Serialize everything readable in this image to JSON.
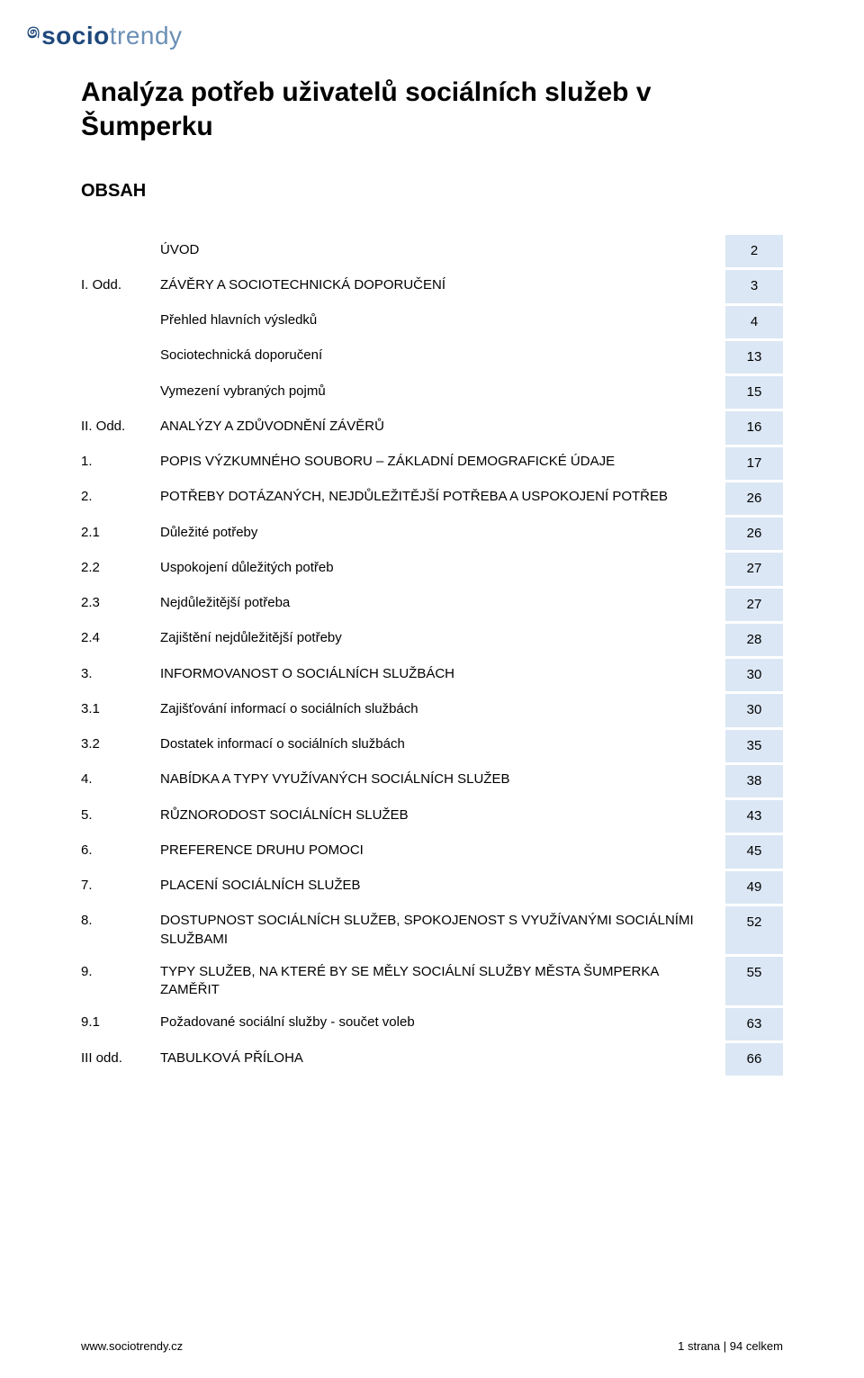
{
  "logo": {
    "mark": "෧",
    "part1": "socio",
    "part2": "trendy"
  },
  "title": "Analýza potřeb uživatelů sociálních služeb v Šumperku",
  "obsah_label": "OBSAH",
  "colors": {
    "page_cell_bg": "#dbe7f4",
    "logo_primary": "#1f487c",
    "logo_secondary": "#6c8fb5",
    "text": "#000000",
    "background": "#ffffff"
  },
  "toc": [
    {
      "num": "",
      "text": "ÚVOD",
      "page": "2"
    },
    {
      "num": "I. Odd.",
      "text": "ZÁVĚRY A SOCIOTECHNICKÁ DOPORUČENÍ",
      "page": "3"
    },
    {
      "num": "",
      "text": "Přehled hlavních výsledků",
      "page": "4"
    },
    {
      "num": "",
      "text": "Sociotechnická doporučení",
      "page": "13"
    },
    {
      "num": "",
      "text": "Vymezení vybraných pojmů",
      "page": "15"
    },
    {
      "num": "II. Odd.",
      "text": "ANALÝZY A ZDŮVODNĚNÍ ZÁVĚRŮ",
      "page": "16"
    },
    {
      "num": "1.",
      "text": "POPIS VÝZKUMNÉHO SOUBORU – ZÁKLADNÍ DEMOGRAFICKÉ ÚDAJE",
      "page": "17"
    },
    {
      "num": "2.",
      "text": "POTŘEBY DOTÁZANÝCH, NEJDŮLEŽITĚJŠÍ POTŘEBA A USPOKOJENÍ POTŘEB",
      "page": "26"
    },
    {
      "num": "2.1",
      "text": "Důležité potřeby",
      "page": "26"
    },
    {
      "num": "2.2",
      "text": "Uspokojení důležitých potřeb",
      "page": "27"
    },
    {
      "num": "2.3",
      "text": "Nejdůležitější potřeba",
      "page": "27"
    },
    {
      "num": "2.4",
      "text": "Zajištění nejdůležitější potřeby",
      "page": "28"
    },
    {
      "num": "3.",
      "text": "INFORMOVANOST O SOCIÁLNÍCH SLUŽBÁCH",
      "page": "30"
    },
    {
      "num": "3.1",
      "text": "Zajišťování informací o sociálních službách",
      "page": "30"
    },
    {
      "num": "3.2",
      "text": "Dostatek informací o sociálních službách",
      "page": "35"
    },
    {
      "num": "4.",
      "text": "NABÍDKA A TYPY VYUŽÍVANÝCH SOCIÁLNÍCH SLUŽEB",
      "page": "38"
    },
    {
      "num": "5.",
      "text": "RŮZNORODOST SOCIÁLNÍCH SLUŽEB",
      "page": "43"
    },
    {
      "num": "6.",
      "text": "PREFERENCE DRUHU POMOCI",
      "page": "45"
    },
    {
      "num": "7.",
      "text": "PLACENÍ SOCIÁLNÍCH SLUŽEB",
      "page": "49"
    },
    {
      "num": "8.",
      "text": "DOSTUPNOST SOCIÁLNÍCH SLUŽEB, SPOKOJENOST S VYUŽÍVANÝMI SOCIÁLNÍMI SLUŽBAMI",
      "page": "52"
    },
    {
      "num": "9.",
      "text": "TYPY SLUŽEB, NA KTERÉ BY SE MĚLY SOCIÁLNÍ SLUŽBY MĚSTA ŠUMPERKA ZAMĚŘIT",
      "page": "55"
    },
    {
      "num": "9.1",
      "text": "Požadované sociální služby - součet voleb",
      "page": "63"
    },
    {
      "num": "III odd.",
      "text": "TABULKOVÁ PŘÍLOHA",
      "page": "66"
    }
  ],
  "footer": {
    "url": "www.sociotrendy.cz",
    "page_info": "1 strana | 94 celkem"
  }
}
